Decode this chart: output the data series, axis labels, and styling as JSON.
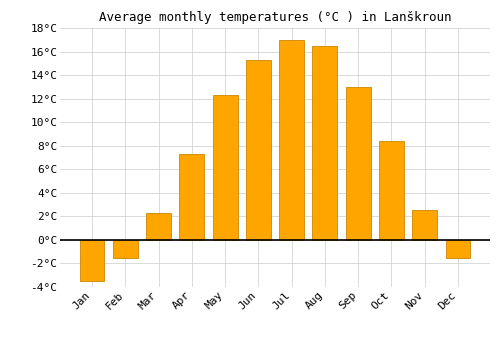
{
  "title": "Average monthly temperatures (°C ) in Lanškroun",
  "months": [
    "Jan",
    "Feb",
    "Mar",
    "Apr",
    "May",
    "Jun",
    "Jul",
    "Aug",
    "Sep",
    "Oct",
    "Nov",
    "Dec"
  ],
  "values": [
    -3.5,
    -1.5,
    2.3,
    7.3,
    12.3,
    15.3,
    17.0,
    16.5,
    13.0,
    8.4,
    2.5,
    -1.5
  ],
  "bar_color": "#FFA500",
  "bar_edge_color": "#CC8800",
  "background_color": "#FFFFFF",
  "grid_color": "#CCCCCC",
  "ylim": [
    -4,
    18
  ],
  "yticks": [
    -4,
    -2,
    0,
    2,
    4,
    6,
    8,
    10,
    12,
    14,
    16,
    18
  ],
  "title_fontsize": 9,
  "tick_fontsize": 8,
  "zero_line_color": "#000000",
  "bar_width": 0.75
}
